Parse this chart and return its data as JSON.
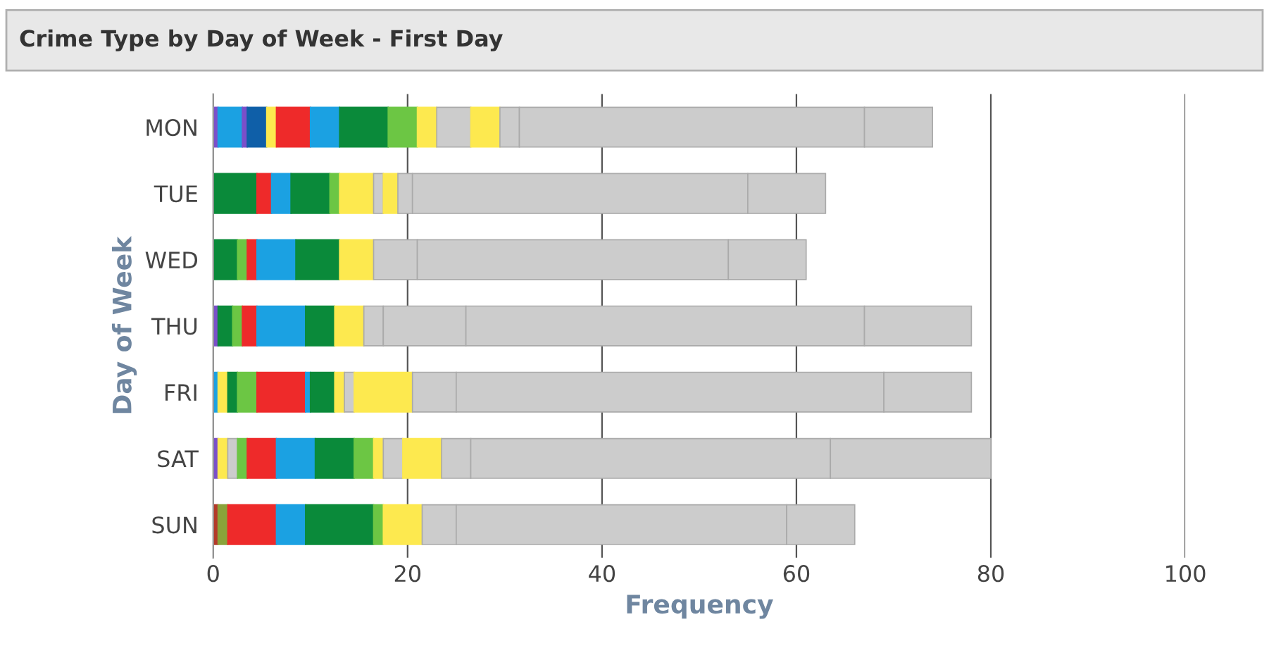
{
  "chart_data": {
    "type": "bar",
    "orientation": "horizontal",
    "stacked": true,
    "title": "Crime Type by Day of Week - First Day",
    "xlabel": "Frequency",
    "ylabel": "Day of Week",
    "categories": [
      "MON",
      "TUE",
      "WED",
      "THU",
      "FRI",
      "SAT",
      "SUN"
    ],
    "series": [
      {
        "values": [
          0.5,
          4.5,
          2.5,
          0.5,
          0.5,
          0.5,
          0.5
        ],
        "colors": [
          "#7b4fc9",
          "#0a8a3a",
          "#0a8a3a",
          "#7b4fc9",
          "#1ba1e2",
          "#7b4fc9",
          "#b33a2a"
        ]
      },
      {
        "values": [
          2.5,
          1.5,
          1,
          1.5,
          1,
          1,
          1
        ],
        "colors": [
          "#1ba1e2",
          "#ee2a2a",
          "#6cc644",
          "#0a8a3a",
          "#fde94f",
          "#fde94f",
          "#8aa33a"
        ]
      },
      {
        "values": [
          0.5,
          2,
          1,
          1,
          1,
          1,
          5
        ],
        "colors": [
          "#7b4fc9",
          "#1ba1e2",
          "#ee2a2a",
          "#6cc644",
          "#0a8a3a",
          "#cccccc",
          "#ee2a2a"
        ]
      },
      {
        "values": [
          2,
          4,
          4,
          1.5,
          2,
          1,
          3
        ],
        "colors": [
          "#0f5fa8",
          "#0a8a3a",
          "#1ba1e2",
          "#ee2a2a",
          "#6cc644",
          "#6cc644",
          "#1ba1e2"
        ]
      },
      {
        "values": [
          1,
          1,
          4.5,
          5,
          5,
          3,
          7
        ],
        "colors": [
          "#fde94f",
          "#6cc644",
          "#0a8a3a",
          "#1ba1e2",
          "#ee2a2a",
          "#ee2a2a",
          "#0a8a3a"
        ]
      },
      {
        "values": [
          3.5,
          3.5,
          3.5,
          3,
          0.5,
          4,
          1
        ],
        "colors": [
          "#ee2a2a",
          "#fde94f",
          "#fde94f",
          "#0a8a3a",
          "#1ba1e2",
          "#1ba1e2",
          "#6cc644"
        ]
      },
      {
        "values": [
          3,
          1,
          4.5,
          3,
          2.5,
          4,
          4
        ],
        "colors": [
          "#1ba1e2",
          "#cccccc",
          "#cccccc",
          "#fde94f",
          "#0a8a3a",
          "#0a8a3a",
          "#fde94f"
        ]
      },
      {
        "values": [
          5,
          1.5,
          32,
          2,
          1,
          2,
          3.5
        ],
        "colors": [
          "#0a8a3a",
          "#fde94f",
          "#cccccc",
          "#cccccc",
          "#fde94f",
          "#6cc644",
          "#cccccc"
        ]
      },
      {
        "values": [
          3,
          1.5,
          8,
          8.5,
          1,
          1,
          34
        ],
        "colors": [
          "#6cc644",
          "#cccccc",
          "#cccccc",
          "#cccccc",
          "#cccccc",
          "#fde94f",
          "#cccccc"
        ]
      },
      {
        "values": [
          2,
          34.5,
          null,
          41,
          6,
          2,
          7
        ],
        "colors": [
          "#fde94f",
          "#cccccc",
          null,
          "#cccccc",
          "#fde94f",
          "#cccccc",
          "#cccccc"
        ]
      },
      {
        "values": [
          3.5,
          8,
          null,
          11,
          4.5,
          4,
          null
        ],
        "colors": [
          "#cccccc",
          "#cccccc",
          null,
          "#cccccc",
          "#cccccc",
          "#fde94f",
          null
        ]
      },
      {
        "values": [
          3,
          null,
          null,
          null,
          44,
          3,
          null
        ],
        "colors": [
          "#fde94f",
          null,
          null,
          null,
          "#cccccc",
          "#cccccc",
          null
        ]
      },
      {
        "values": [
          2,
          null,
          null,
          null,
          9,
          37,
          null
        ],
        "colors": [
          "#cccccc",
          null,
          null,
          null,
          "#cccccc",
          "#cccccc",
          null
        ]
      },
      {
        "values": [
          35.5,
          null,
          null,
          null,
          null,
          16.5,
          null
        ],
        "colors": [
          "#cccccc",
          null,
          null,
          null,
          null,
          "#cccccc",
          null
        ]
      },
      {
        "values": [
          7,
          null,
          null,
          null,
          null,
          null,
          null
        ],
        "colors": [
          "#cccccc",
          null,
          null,
          null,
          null,
          null,
          null
        ]
      }
    ],
    "xlim": [
      0,
      100
    ],
    "xticks": [
      0,
      20,
      40,
      60,
      80,
      100
    ],
    "grid": "x"
  }
}
